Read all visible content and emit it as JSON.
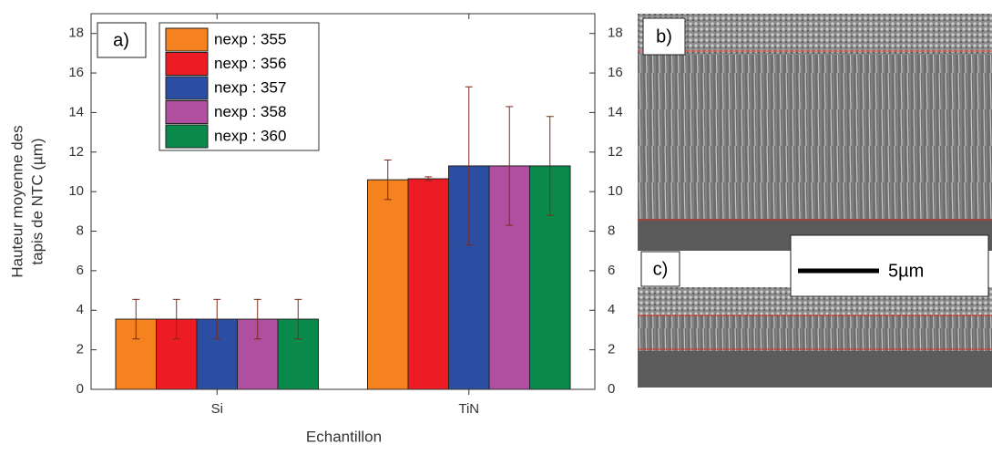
{
  "chart_data": {
    "type": "bar",
    "annotation": "a)",
    "ylabel": [
      "Hauteur moyenne des",
      "tapis de NTC (µm)"
    ],
    "xlabel": "Echantillon",
    "categories": [
      "Si",
      "TiN"
    ],
    "series": [
      {
        "name": "nexp : 355",
        "color": "#f5821f",
        "values": [
          3.55,
          10.6
        ],
        "errors": [
          1.0,
          1.0
        ]
      },
      {
        "name": "nexp : 356",
        "color": "#ed1c24",
        "values": [
          3.55,
          10.65
        ],
        "errors": [
          1.0,
          0.1
        ]
      },
      {
        "name": "nexp : 357",
        "color": "#2b4ea2",
        "values": [
          3.55,
          11.3
        ],
        "errors": [
          1.0,
          4.0
        ]
      },
      {
        "name": "nexp : 358",
        "color": "#b04fa0",
        "values": [
          3.55,
          11.3
        ],
        "errors": [
          1.0,
          3.0
        ]
      },
      {
        "name": "nexp : 360",
        "color": "#0a8a4a",
        "values": [
          3.55,
          11.3
        ],
        "errors": [
          1.0,
          2.5
        ]
      }
    ],
    "ylim": [
      0,
      19
    ],
    "yticks": [
      0,
      2,
      4,
      6,
      8,
      10,
      12,
      14,
      16,
      18
    ],
    "y2lim": [
      0,
      19
    ],
    "y2ticks": [
      0,
      2,
      4,
      6,
      8,
      10,
      12,
      14,
      16,
      18
    ]
  },
  "image_panels": {
    "labels": [
      "b)",
      "c)"
    ],
    "scale_bar": "5µm"
  }
}
